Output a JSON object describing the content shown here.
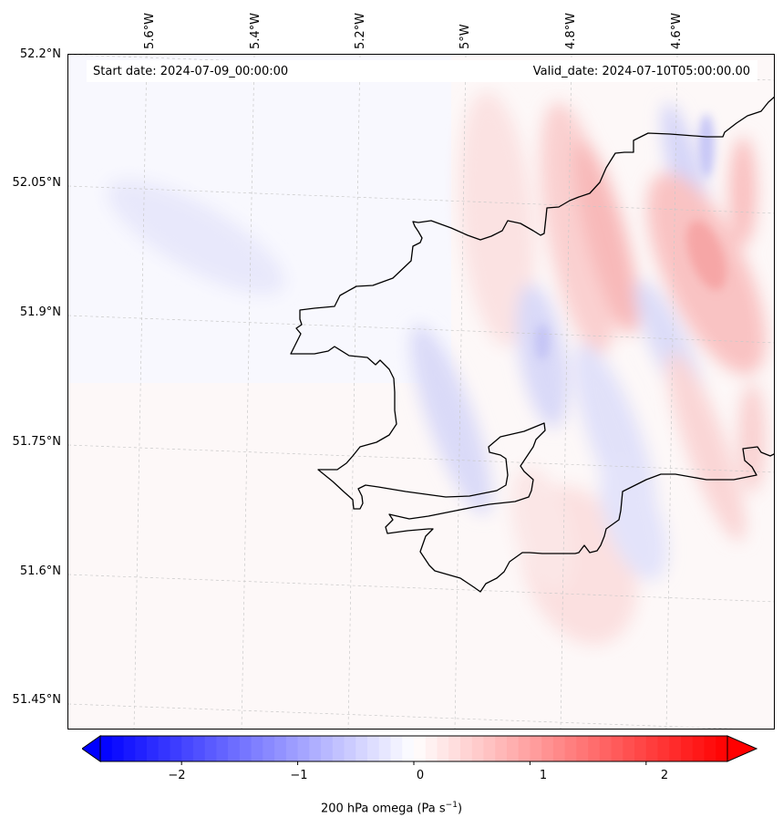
{
  "header": {
    "start_date": "Start date: 2024-07-09_00:00:00",
    "valid_date": "Valid_date: 2024-07-10T05:00:00.00"
  },
  "axes": {
    "lat_labels": [
      "52.2°N",
      "52.05°N",
      "51.9°N",
      "51.75°N",
      "51.6°N",
      "51.45°N"
    ],
    "lon_labels": [
      "5.6°W",
      "5.4°W",
      "5.2°W",
      "5°W",
      "4.8°W",
      "4.6°W"
    ]
  },
  "colorbar": {
    "title": "200 hPa omega (Pa s",
    "title_sup": "−1",
    "title_end": ")",
    "ticks": [
      "−2",
      "−1",
      "0",
      "1",
      "2"
    ],
    "range": [
      -2.7,
      2.7
    ],
    "colormap": "bwr",
    "extend": "both"
  },
  "colors": {
    "negative": "#0000ff",
    "zero": "#ffffff",
    "positive": "#ff0000",
    "coastline": "#000000",
    "grid": "#c8c8c8"
  }
}
